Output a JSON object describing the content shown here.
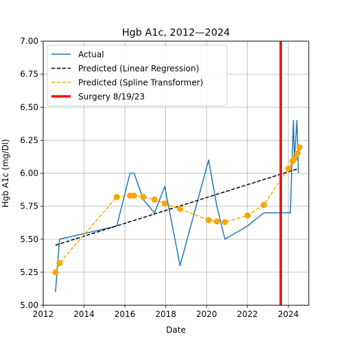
{
  "chart_data": {
    "type": "line",
    "title": "Hgb A1c, 2012—2024",
    "xlabel": "Date",
    "ylabel": "Hgb A1c (mg/Dl)",
    "xlim": [
      2012.0,
      2025.0
    ],
    "ylim": [
      5.0,
      7.0
    ],
    "x_ticks": [
      2012,
      2014,
      2016,
      2018,
      2020,
      2022,
      2024
    ],
    "y_ticks": [
      5.0,
      5.25,
      5.5,
      5.75,
      6.0,
      6.25,
      6.5,
      6.75,
      7.0
    ],
    "y_tick_labels": [
      "5.00",
      "5.25",
      "5.50",
      "5.75",
      "6.00",
      "6.25",
      "6.50",
      "6.75",
      "7.00"
    ],
    "grid": true,
    "legend_position": "top-left",
    "series": [
      {
        "name": "Actual",
        "style": "solid",
        "color": "#1f77b4",
        "x": [
          2012.6,
          2012.8,
          2015.6,
          2016.25,
          2016.45,
          2016.9,
          2017.45,
          2017.95,
          2018.7,
          2020.1,
          2020.5,
          2020.9,
          2022.0,
          2022.8,
          2024.1,
          2024.25,
          2024.3,
          2024.42,
          2024.5
        ],
        "y": [
          5.1,
          5.5,
          5.6,
          6.0,
          6.0,
          5.8,
          5.7,
          5.9,
          5.3,
          6.1,
          5.75,
          5.5,
          5.6,
          5.7,
          5.7,
          6.4,
          6.1,
          6.4,
          6.0
        ]
      },
      {
        "name": "Predicted (Linear Regression)",
        "style": "dashed",
        "color": "#000000",
        "x": [
          2012.6,
          2024.5
        ],
        "y": [
          5.455,
          6.035
        ]
      },
      {
        "name": "Predicted (Spline Transformer)",
        "style": "dashed-markers",
        "color": "#ffa500",
        "x": [
          2012.6,
          2012.8,
          2015.6,
          2016.25,
          2016.45,
          2016.9,
          2017.45,
          2017.95,
          2018.7,
          2020.1,
          2020.5,
          2020.9,
          2022.0,
          2022.8,
          2024.0,
          2024.2,
          2024.3,
          2024.45,
          2024.55
        ],
        "y": [
          5.25,
          5.32,
          5.82,
          5.83,
          5.83,
          5.82,
          5.8,
          5.77,
          5.73,
          5.645,
          5.635,
          5.63,
          5.68,
          5.76,
          6.035,
          6.09,
          6.11,
          6.15,
          6.195
        ]
      }
    ],
    "vlines": [
      {
        "name": "Surgery 8/19/23",
        "x": 2023.63,
        "color": "#ff0000"
      }
    ]
  }
}
